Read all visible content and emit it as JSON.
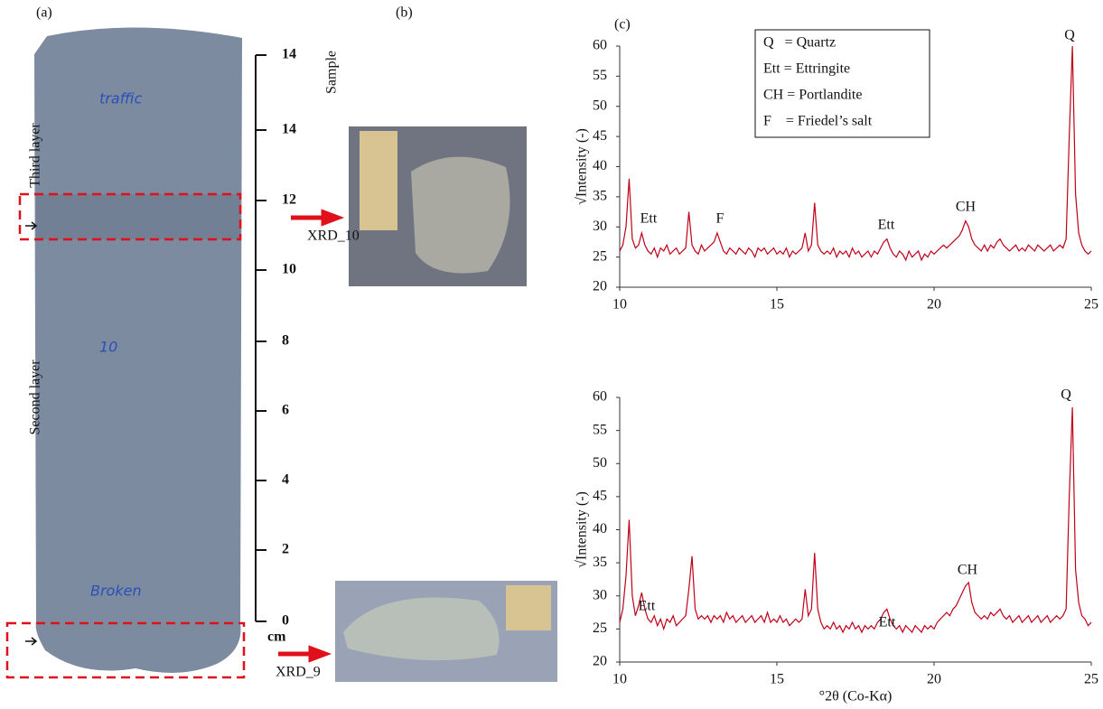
{
  "panels": {
    "a": "(a)",
    "b": "(b)",
    "c": "(c)"
  },
  "core": {
    "layers": [
      "Third layer",
      "Second layer"
    ],
    "writing": [
      "traffic",
      "10",
      "Broken"
    ]
  },
  "scale": {
    "ticks": [
      "14",
      "14",
      "12",
      "10",
      "8",
      "6",
      "4",
      "2",
      "0"
    ],
    "unit": "cm"
  },
  "samples": {
    "title": "Sample",
    "labels": [
      "XRD_10",
      "XRD_9"
    ]
  },
  "chart_data": [
    {
      "type": "line",
      "ylabel": "√Intensity (-)",
      "legend": [
        "Q   = Quartz",
        "Ett = Ettringite",
        "CH = Portlandite",
        "F    = Friedel’s salt"
      ],
      "annotations": [
        "Q",
        "Ett",
        "F",
        "Ett",
        "CH"
      ],
      "xlim": [
        10,
        25
      ],
      "xticks": [
        10,
        15,
        20,
        25
      ],
      "ylim": [
        20,
        60
      ],
      "yticks": [
        20,
        25,
        30,
        35,
        40,
        45,
        50,
        55,
        60
      ],
      "x": [
        10,
        10.1,
        10.2,
        10.3,
        10.4,
        10.5,
        10.6,
        10.7,
        10.8,
        10.9,
        11,
        11.1,
        11.2,
        11.3,
        11.4,
        11.5,
        11.6,
        11.7,
        11.8,
        11.9,
        12,
        12.1,
        12.2,
        12.3,
        12.4,
        12.5,
        12.6,
        12.7,
        12.8,
        12.9,
        13,
        13.1,
        13.2,
        13.3,
        13.4,
        13.5,
        13.6,
        13.7,
        13.8,
        13.9,
        14,
        14.1,
        14.2,
        14.3,
        14.4,
        14.5,
        14.6,
        14.7,
        14.8,
        14.9,
        15,
        15.1,
        15.2,
        15.3,
        15.4,
        15.5,
        15.6,
        15.7,
        15.8,
        15.9,
        16,
        16.1,
        16.2,
        16.3,
        16.4,
        16.5,
        16.6,
        16.7,
        16.8,
        16.9,
        17,
        17.1,
        17.2,
        17.3,
        17.4,
        17.5,
        17.6,
        17.7,
        17.8,
        17.9,
        18,
        18.1,
        18.2,
        18.3,
        18.4,
        18.5,
        18.6,
        18.7,
        18.8,
        18.9,
        19,
        19.1,
        19.2,
        19.3,
        19.4,
        19.5,
        19.6,
        19.7,
        19.8,
        19.9,
        20,
        20.1,
        20.2,
        20.3,
        20.4,
        20.5,
        20.6,
        20.7,
        20.8,
        20.9,
        21,
        21.1,
        21.2,
        21.3,
        21.4,
        21.5,
        21.6,
        21.7,
        21.8,
        21.9,
        22,
        22.1,
        22.2,
        22.3,
        22.4,
        22.5,
        22.6,
        22.7,
        22.8,
        22.9,
        23,
        23.1,
        23.2,
        23.3,
        23.4,
        23.5,
        23.6,
        23.7,
        23.8,
        23.9,
        24,
        24.1,
        24.2,
        24.3,
        24.4,
        24.5,
        24.6,
        24.7,
        24.8,
        24.9,
        25
      ],
      "series": [
        {
          "color": "#c00018",
          "values": [
            26,
            27,
            30,
            38,
            28,
            26.5,
            27,
            29,
            27,
            26,
            25.5,
            26.5,
            25,
            26.5,
            26,
            27,
            25.5,
            26,
            26.5,
            25.5,
            26,
            26.5,
            32.5,
            27,
            26,
            25.5,
            27,
            26,
            26.5,
            27,
            27.5,
            29,
            27.5,
            26,
            25.5,
            26.5,
            26,
            25.5,
            26.5,
            26,
            25.5,
            26.5,
            26,
            25,
            26.5,
            26,
            26.5,
            25.5,
            26,
            26.5,
            25.5,
            26,
            25.5,
            26.5,
            25,
            26,
            25.5,
            26,
            26.5,
            29,
            26,
            27,
            34,
            27,
            26,
            25.5,
            26,
            25.5,
            26.5,
            25,
            26,
            25.5,
            26,
            25,
            26.5,
            25.5,
            26,
            25,
            25.5,
            26,
            25,
            26,
            25.5,
            26.5,
            27.5,
            28,
            26.5,
            25.5,
            25,
            26,
            25.5,
            24.5,
            26,
            25,
            25.5,
            26,
            24.5,
            25.5,
            25,
            26,
            25.5,
            26,
            26.5,
            27,
            26.5,
            27,
            27.5,
            28,
            28.5,
            29.5,
            31,
            30,
            28,
            27,
            26.5,
            26,
            27,
            26,
            27,
            26.5,
            27.5,
            28,
            27,
            26.5,
            26,
            26.5,
            27,
            26,
            26.5,
            26,
            27,
            26.5,
            26,
            27,
            26.5,
            26,
            26.5,
            27,
            26,
            26.5,
            27,
            26.5,
            28,
            45,
            60,
            35.5,
            29,
            27,
            26,
            25.5,
            26
          ]
        }
      ]
    },
    {
      "type": "line",
      "ylabel": "√Intensity (-)",
      "xlabel": "°2θ (Co-Kα)",
      "annotations": [
        "Q",
        "Ett",
        "Ett",
        "CH"
      ],
      "xlim": [
        10,
        25
      ],
      "xticks": [
        10,
        15,
        20,
        25
      ],
      "ylim": [
        20,
        60
      ],
      "yticks": [
        20,
        25,
        30,
        35,
        40,
        45,
        50,
        55,
        60
      ],
      "x": [
        10,
        10.1,
        10.2,
        10.3,
        10.4,
        10.5,
        10.6,
        10.7,
        10.8,
        10.9,
        11,
        11.1,
        11.2,
        11.3,
        11.4,
        11.5,
        11.6,
        11.7,
        11.8,
        11.9,
        12,
        12.1,
        12.2,
        12.3,
        12.4,
        12.5,
        12.6,
        12.7,
        12.8,
        12.9,
        13,
        13.1,
        13.2,
        13.3,
        13.4,
        13.5,
        13.6,
        13.7,
        13.8,
        13.9,
        14,
        14.1,
        14.2,
        14.3,
        14.4,
        14.5,
        14.6,
        14.7,
        14.8,
        14.9,
        15,
        15.1,
        15.2,
        15.3,
        15.4,
        15.5,
        15.6,
        15.7,
        15.8,
        15.9,
        16,
        16.1,
        16.2,
        16.3,
        16.4,
        16.5,
        16.6,
        16.7,
        16.8,
        16.9,
        17,
        17.1,
        17.2,
        17.3,
        17.4,
        17.5,
        17.6,
        17.7,
        17.8,
        17.9,
        18,
        18.1,
        18.2,
        18.3,
        18.4,
        18.5,
        18.6,
        18.7,
        18.8,
        18.9,
        19,
        19.1,
        19.2,
        19.3,
        19.4,
        19.5,
        19.6,
        19.7,
        19.8,
        19.9,
        20,
        20.1,
        20.2,
        20.3,
        20.4,
        20.5,
        20.6,
        20.7,
        20.8,
        20.9,
        21,
        21.1,
        21.2,
        21.3,
        21.4,
        21.5,
        21.6,
        21.7,
        21.8,
        21.9,
        22,
        22.1,
        22.2,
        22.3,
        22.4,
        22.5,
        22.6,
        22.7,
        22.8,
        22.9,
        23,
        23.1,
        23.2,
        23.3,
        23.4,
        23.5,
        23.6,
        23.7,
        23.8,
        23.9,
        24,
        24.1,
        24.2,
        24.3,
        24.4,
        24.5,
        24.6,
        24.7,
        24.8,
        24.9,
        25
      ],
      "series": [
        {
          "color": "#c00018",
          "values": [
            26,
            28,
            33,
            41.5,
            30,
            27,
            28.5,
            30.5,
            28,
            26.5,
            26,
            27,
            25.5,
            26.5,
            25,
            26.5,
            26,
            27,
            25.5,
            26,
            26.5,
            27,
            31,
            36,
            28,
            26.5,
            27,
            26.5,
            27,
            26,
            27,
            26.5,
            27,
            26,
            27.5,
            26.5,
            27,
            26,
            26.5,
            27,
            26,
            26.5,
            27,
            26,
            26.5,
            27,
            26,
            27.5,
            26,
            26.5,
            26,
            27,
            26,
            26.5,
            25.5,
            26,
            26.5,
            26,
            26.5,
            31,
            27,
            28,
            36.5,
            28,
            26,
            25,
            25.5,
            25,
            26,
            25,
            25.5,
            24.5,
            25.5,
            25,
            26,
            25,
            25.5,
            24.5,
            25.5,
            25,
            25.5,
            25,
            26,
            26.5,
            27.5,
            28,
            26.5,
            25.5,
            25,
            25.5,
            24.5,
            25.5,
            25,
            24.5,
            25.5,
            25,
            24.5,
            25.5,
            25,
            25.5,
            25,
            26,
            26.5,
            27,
            27.5,
            27,
            28,
            28.5,
            29.5,
            30.5,
            31.5,
            32,
            29,
            27.5,
            27,
            26.5,
            27,
            26.5,
            27.5,
            27,
            27.5,
            28,
            27,
            26.5,
            27,
            26,
            26.5,
            27,
            26,
            26.5,
            27,
            26,
            26.5,
            27,
            26,
            26.5,
            27,
            26,
            26.5,
            27,
            26.5,
            27,
            28,
            45,
            58.5,
            34,
            29,
            27,
            26.5,
            25.5,
            26
          ]
        }
      ]
    }
  ]
}
